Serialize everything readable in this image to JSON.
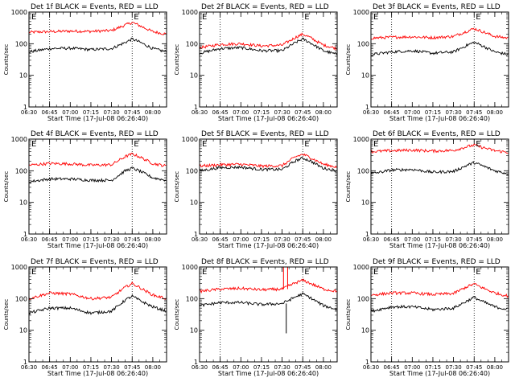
{
  "chart_data": [
    {
      "type": "line",
      "title": "Det 1f BLACK = Events, RED = LLD",
      "marker": "E",
      "marker_time": "07:45",
      "ylabel": "Counts/sec",
      "xlabel": "Start Time (17-Jul-08 06:26:40)",
      "yscale": "log",
      "ylim": [
        1,
        1000
      ],
      "ytick_labels": [
        "1",
        "10",
        "100",
        "1000"
      ],
      "xlim": [
        "06:30",
        "08:10"
      ],
      "xtick_labels": [
        "06:30",
        "06:45",
        "07:00",
        "07:15",
        "07:30",
        "07:45",
        "08:00"
      ],
      "vlines": [
        "06:45",
        "07:45"
      ],
      "x": [
        "06:30",
        "06:45",
        "07:00",
        "07:15",
        "07:30",
        "07:40",
        "07:45",
        "07:50",
        "08:00",
        "08:10"
      ],
      "series": [
        {
          "color": "#ff0000",
          "values": [
            230,
            240,
            250,
            245,
            260,
            390,
            470,
            380,
            240,
            200
          ]
        },
        {
          "color": "#000000",
          "values": [
            55,
            70,
            72,
            65,
            70,
            110,
            140,
            115,
            70,
            55
          ]
        }
      ]
    },
    {
      "type": "line",
      "title": "Det 2f BLACK = Events, RED = LLD",
      "marker": "E",
      "marker_time": "07:45",
      "ylabel": "Counts/sec",
      "xlabel": "Start Time (17-Jul-08 06:26:40)",
      "yscale": "log",
      "ylim": [
        1,
        1000
      ],
      "ytick_labels": [
        "1",
        "10",
        "100",
        "1000"
      ],
      "xlim": [
        "06:30",
        "08:10"
      ],
      "xtick_labels": [
        "06:30",
        "06:45",
        "07:00",
        "07:15",
        "07:30",
        "07:45",
        "08:00"
      ],
      "vlines": [
        "06:45",
        "07:45"
      ],
      "x": [
        "06:30",
        "06:45",
        "07:00",
        "07:15",
        "07:30",
        "07:40",
        "07:45",
        "07:50",
        "08:00",
        "08:10"
      ],
      "series": [
        {
          "color": "#ff0000",
          "values": [
            75,
            95,
            100,
            85,
            90,
            160,
            200,
            160,
            90,
            70
          ]
        },
        {
          "color": "#000000",
          "values": [
            50,
            70,
            75,
            60,
            60,
            110,
            140,
            110,
            60,
            45
          ]
        }
      ]
    },
    {
      "type": "line",
      "title": "Det 3f BLACK = Events, RED = LLD",
      "marker": "E",
      "marker_time": "07:45",
      "ylabel": "Counts/sec",
      "xlabel": "Start Time (17-Jul-08 06:26:40)",
      "yscale": "log",
      "ylim": [
        1,
        1000
      ],
      "ytick_labels": [
        "1",
        "10",
        "100",
        "1000"
      ],
      "xlim": [
        "06:30",
        "08:10"
      ],
      "xtick_labels": [
        "06:30",
        "06:45",
        "07:00",
        "07:15",
        "07:30",
        "07:45",
        "08:00"
      ],
      "vlines": [
        "06:45",
        "07:45"
      ],
      "x": [
        "06:30",
        "06:45",
        "07:00",
        "07:15",
        "07:30",
        "07:40",
        "07:45",
        "07:50",
        "08:00",
        "08:10"
      ],
      "series": [
        {
          "color": "#ff0000",
          "values": [
            150,
            160,
            165,
            155,
            170,
            250,
            300,
            250,
            170,
            150
          ]
        },
        {
          "color": "#000000",
          "values": [
            45,
            55,
            60,
            50,
            55,
            90,
            110,
            90,
            55,
            45
          ]
        }
      ]
    },
    {
      "type": "line",
      "title": "Det 4f BLACK = Events, RED = LLD",
      "marker": "E",
      "marker_time": "07:45",
      "ylabel": "Counts/sec",
      "xlabel": "Start Time (17-Jul-08 06:26:40)",
      "yscale": "log",
      "ylim": [
        1,
        1000
      ],
      "ytick_labels": [
        "1",
        "10",
        "100",
        "1000"
      ],
      "xlim": [
        "06:30",
        "08:10"
      ],
      "xtick_labels": [
        "06:30",
        "06:45",
        "07:00",
        "07:15",
        "07:30",
        "07:45",
        "08:00"
      ],
      "vlines": [
        "06:45",
        "07:45"
      ],
      "x": [
        "06:30",
        "06:45",
        "07:00",
        "07:15",
        "07:30",
        "07:40",
        "07:45",
        "07:50",
        "08:00",
        "08:10"
      ],
      "series": [
        {
          "color": "#ff0000",
          "values": [
            150,
            170,
            165,
            150,
            155,
            280,
            340,
            280,
            170,
            140
          ]
        },
        {
          "color": "#000000",
          "values": [
            45,
            55,
            55,
            50,
            50,
            100,
            120,
            100,
            60,
            50
          ]
        }
      ]
    },
    {
      "type": "line",
      "title": "Det 5f BLACK = Events, RED = LLD",
      "marker": "E",
      "marker_time": "07:45",
      "ylabel": "Counts/sec",
      "xlabel": "Start Time (17-Jul-08 06:26:40)",
      "yscale": "log",
      "ylim": [
        1,
        1000
      ],
      "ytick_labels": [
        "1",
        "10",
        "100",
        "1000"
      ],
      "xlim": [
        "06:30",
        "08:10"
      ],
      "xtick_labels": [
        "06:30",
        "06:45",
        "07:00",
        "07:15",
        "07:30",
        "07:45",
        "08:00"
      ],
      "vlines": [
        "06:45",
        "07:45"
      ],
      "x": [
        "06:30",
        "06:45",
        "07:00",
        "07:15",
        "07:30",
        "07:40",
        "07:45",
        "07:50",
        "08:00",
        "08:10"
      ],
      "series": [
        {
          "color": "#ff0000",
          "values": [
            140,
            155,
            160,
            140,
            145,
            280,
            330,
            270,
            160,
            130
          ]
        },
        {
          "color": "#000000",
          "values": [
            100,
            125,
            130,
            110,
            110,
            210,
            250,
            210,
            120,
            100
          ]
        }
      ]
    },
    {
      "type": "line",
      "title": "Det 6f BLACK = Events, RED = LLD",
      "marker": "E",
      "marker_time": "07:45",
      "ylabel": "Counts/sec",
      "xlabel": "Start Time (17-Jul-08 06:26:40)",
      "yscale": "log",
      "ylim": [
        1,
        1000
      ],
      "ytick_labels": [
        "1",
        "10",
        "100",
        "1000"
      ],
      "xlim": [
        "06:30",
        "08:10"
      ],
      "xtick_labels": [
        "06:30",
        "06:45",
        "07:00",
        "07:15",
        "07:30",
        "07:45",
        "08:00"
      ],
      "vlines": [
        "06:45",
        "07:45"
      ],
      "x": [
        "06:30",
        "06:45",
        "07:00",
        "07:15",
        "07:30",
        "07:40",
        "07:45",
        "07:50",
        "08:00",
        "08:10"
      ],
      "series": [
        {
          "color": "#ff0000",
          "values": [
            400,
            430,
            450,
            420,
            440,
            580,
            650,
            560,
            430,
            380
          ]
        },
        {
          "color": "#000000",
          "values": [
            80,
            105,
            110,
            90,
            95,
            150,
            180,
            150,
            100,
            80
          ]
        }
      ]
    },
    {
      "type": "line",
      "title": "Det 7f BLACK = Events, RED = LLD",
      "marker": "E",
      "marker_time": "07:45",
      "ylabel": "Counts/sec",
      "xlabel": "Start Time (17-Jul-08 06:26:40)",
      "yscale": "log",
      "ylim": [
        1,
        1000
      ],
      "ytick_labels": [
        "1",
        "10",
        "100",
        "1000"
      ],
      "xlim": [
        "06:30",
        "08:10"
      ],
      "xtick_labels": [
        "06:30",
        "06:45",
        "07:00",
        "07:15",
        "07:30",
        "07:45",
        "08:00"
      ],
      "vlines": [
        "06:45",
        "07:45"
      ],
      "x": [
        "06:30",
        "06:45",
        "07:00",
        "07:15",
        "07:30",
        "07:40",
        "07:45",
        "07:50",
        "08:00",
        "08:10"
      ],
      "series": [
        {
          "color": "#ff0000",
          "values": [
            100,
            150,
            140,
            100,
            110,
            230,
            300,
            230,
            130,
            100
          ]
        },
        {
          "color": "#000000",
          "values": [
            35,
            50,
            50,
            35,
            40,
            90,
            120,
            90,
            55,
            40
          ]
        }
      ]
    },
    {
      "type": "line",
      "title": "Det 8f BLACK = Events, RED = LLD",
      "marker": "E",
      "marker_time": "07:45",
      "ylabel": "Counts/sec",
      "xlabel": "Start Time (17-Jul-08 06:26:40)",
      "yscale": "log",
      "ylim": [
        1,
        1000
      ],
      "ytick_labels": [
        "1",
        "10",
        "100",
        "1000"
      ],
      "xlim": [
        "06:30",
        "08:10"
      ],
      "xtick_labels": [
        "06:30",
        "06:45",
        "07:00",
        "07:15",
        "07:30",
        "07:45",
        "08:00"
      ],
      "vlines": [
        "06:45",
        "07:45"
      ],
      "x": [
        "06:30",
        "06:45",
        "07:00",
        "07:15",
        "07:30",
        "07:40",
        "07:45",
        "07:50",
        "08:00",
        "08:10"
      ],
      "series": [
        {
          "color": "#ff0000",
          "values": [
            170,
            200,
            210,
            190,
            200,
            320,
            380,
            310,
            200,
            170
          ]
        },
        {
          "color": "#000000",
          "values": [
            60,
            75,
            75,
            65,
            70,
            115,
            140,
            110,
            60,
            45
          ]
        }
      ],
      "spikes": [
        {
          "time": "07:31",
          "color": "#ff0000",
          "value": 1000
        },
        {
          "time": "07:34",
          "color": "#ff0000",
          "value": 1000
        },
        {
          "time": "07:33",
          "color": "#000000",
          "value": 8
        }
      ]
    },
    {
      "type": "line",
      "title": "Det 9f BLACK = Events, RED = LLD",
      "marker": "E",
      "marker_time": "07:45",
      "ylabel": "Counts/sec",
      "xlabel": "Start Time (17-Jul-08 06:26:40)",
      "yscale": "log",
      "ylim": [
        1,
        1000
      ],
      "ytick_labels": [
        "1",
        "10",
        "100",
        "1000"
      ],
      "xlim": [
        "06:30",
        "08:10"
      ],
      "xtick_labels": [
        "06:30",
        "06:45",
        "07:00",
        "07:15",
        "07:30",
        "07:45",
        "08:00"
      ],
      "vlines": [
        "06:45",
        "07:45"
      ],
      "x": [
        "06:30",
        "06:45",
        "07:00",
        "07:15",
        "07:30",
        "07:40",
        "07:45",
        "07:50",
        "08:00",
        "08:10"
      ],
      "series": [
        {
          "color": "#ff0000",
          "values": [
            130,
            150,
            150,
            135,
            145,
            240,
            290,
            230,
            150,
            120
          ]
        },
        {
          "color": "#000000",
          "values": [
            40,
            55,
            55,
            45,
            50,
            85,
            110,
            85,
            55,
            45
          ]
        }
      ]
    }
  ]
}
